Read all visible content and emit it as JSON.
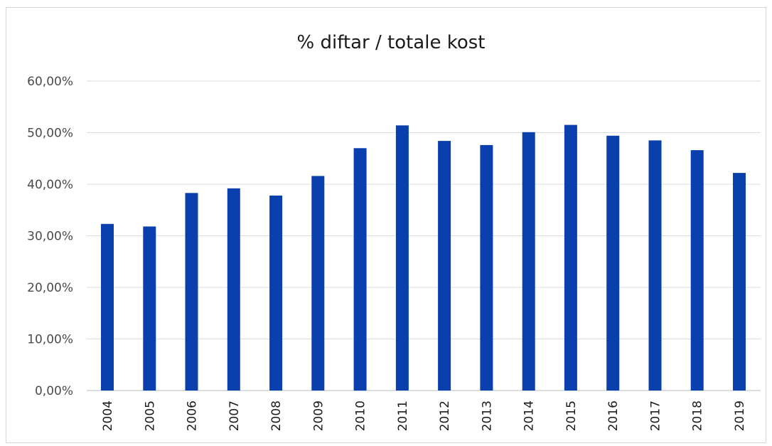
{
  "chart_data": {
    "type": "bar",
    "title": "% diftar / totale kost",
    "xlabel": "",
    "ylabel": "",
    "categories": [
      "2004",
      "2005",
      "2006",
      "2007",
      "2008",
      "2009",
      "2010",
      "2011",
      "2012",
      "2013",
      "2014",
      "2015",
      "2016",
      "2017",
      "2018",
      "2019"
    ],
    "values": [
      32.3,
      31.8,
      38.3,
      39.2,
      37.8,
      41.6,
      47.0,
      51.4,
      48.4,
      47.6,
      50.1,
      51.5,
      49.4,
      48.5,
      46.6,
      42.2
    ],
    "ylim": [
      0,
      60
    ],
    "y_ticks": [
      "0,00%",
      "10,00%",
      "20,00%",
      "30,00%",
      "40,00%",
      "50,00%",
      "60,00%"
    ],
    "y_tick_values": [
      0,
      10,
      20,
      30,
      40,
      50,
      60
    ],
    "grid": true,
    "legend": "none",
    "bar_color": "#0a3fae"
  }
}
